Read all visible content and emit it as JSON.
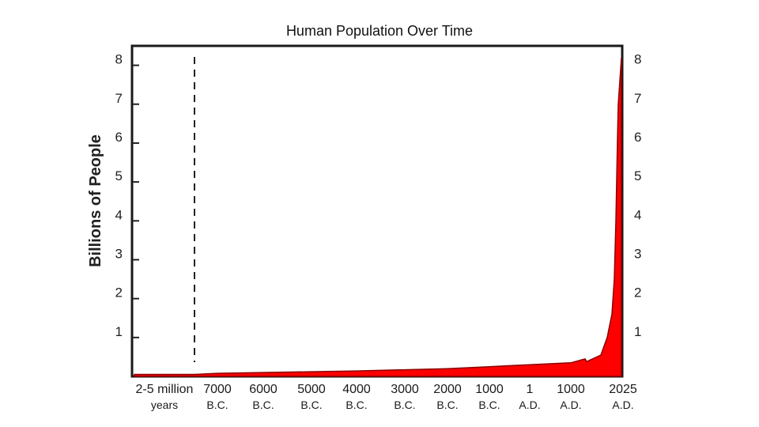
{
  "chart_data": {
    "type": "area",
    "title": "Human Population Over Time",
    "ylabel": "Billions of People",
    "xlabel": "",
    "ylim": [
      0,
      8.5
    ],
    "y_ticks": [
      "1",
      "2",
      "3",
      "4",
      "5",
      "6",
      "7",
      "8"
    ],
    "x_ticks": [
      {
        "top": "2-5 million",
        "bottom": "years"
      },
      {
        "top": "7000",
        "bottom": "B.C."
      },
      {
        "top": "6000",
        "bottom": "B.C."
      },
      {
        "top": "5000",
        "bottom": "B.C."
      },
      {
        "top": "4000",
        "bottom": "B.C."
      },
      {
        "top": "3000",
        "bottom": "B.C."
      },
      {
        "top": "2000",
        "bottom": "B.C."
      },
      {
        "top": "1000",
        "bottom": "B.C."
      },
      {
        "top": "1",
        "bottom": "A.D."
      },
      {
        "top": "1000",
        "bottom": "A.D."
      },
      {
        "top": "2025",
        "bottom": "A.D."
      }
    ],
    "grid": false,
    "fill_color": "#ff0000",
    "series": [
      {
        "x_labels_points": [
          {
            "x": "2-5 million years",
            "y": 0.05
          },
          {
            "x": "8000 B.C.",
            "y": 0.05
          },
          {
            "x": "7000 B.C.",
            "y": 0.08
          },
          {
            "x": "6000 B.C.",
            "y": 0.1
          },
          {
            "x": "5000 B.C.",
            "y": 0.12
          },
          {
            "x": "4000 B.C.",
            "y": 0.14
          },
          {
            "x": "3000 B.C.",
            "y": 0.17
          },
          {
            "x": "2000 B.C.",
            "y": 0.2
          },
          {
            "x": "1000 B.C.",
            "y": 0.25
          },
          {
            "x": "1 A.D.",
            "y": 0.3
          },
          {
            "x": "1000 A.D.",
            "y": 0.35
          },
          {
            "x": "1350 A.D.",
            "y": 0.45
          },
          {
            "x": "1400 A.D.",
            "y": 0.38
          },
          {
            "x": "1650 A.D.",
            "y": 0.55
          },
          {
            "x": "1800 A.D.",
            "y": 1.0
          },
          {
            "x": "1900 A.D.",
            "y": 1.6
          },
          {
            "x": "1950 A.D.",
            "y": 2.5
          },
          {
            "x": "1975 A.D.",
            "y": 4.0
          },
          {
            "x": "2000 A.D.",
            "y": 6.1
          },
          {
            "x": "2011 A.D.",
            "y": 7.0
          },
          {
            "x": "2025 A.D.",
            "y": 8.2
          }
        ]
      }
    ]
  }
}
